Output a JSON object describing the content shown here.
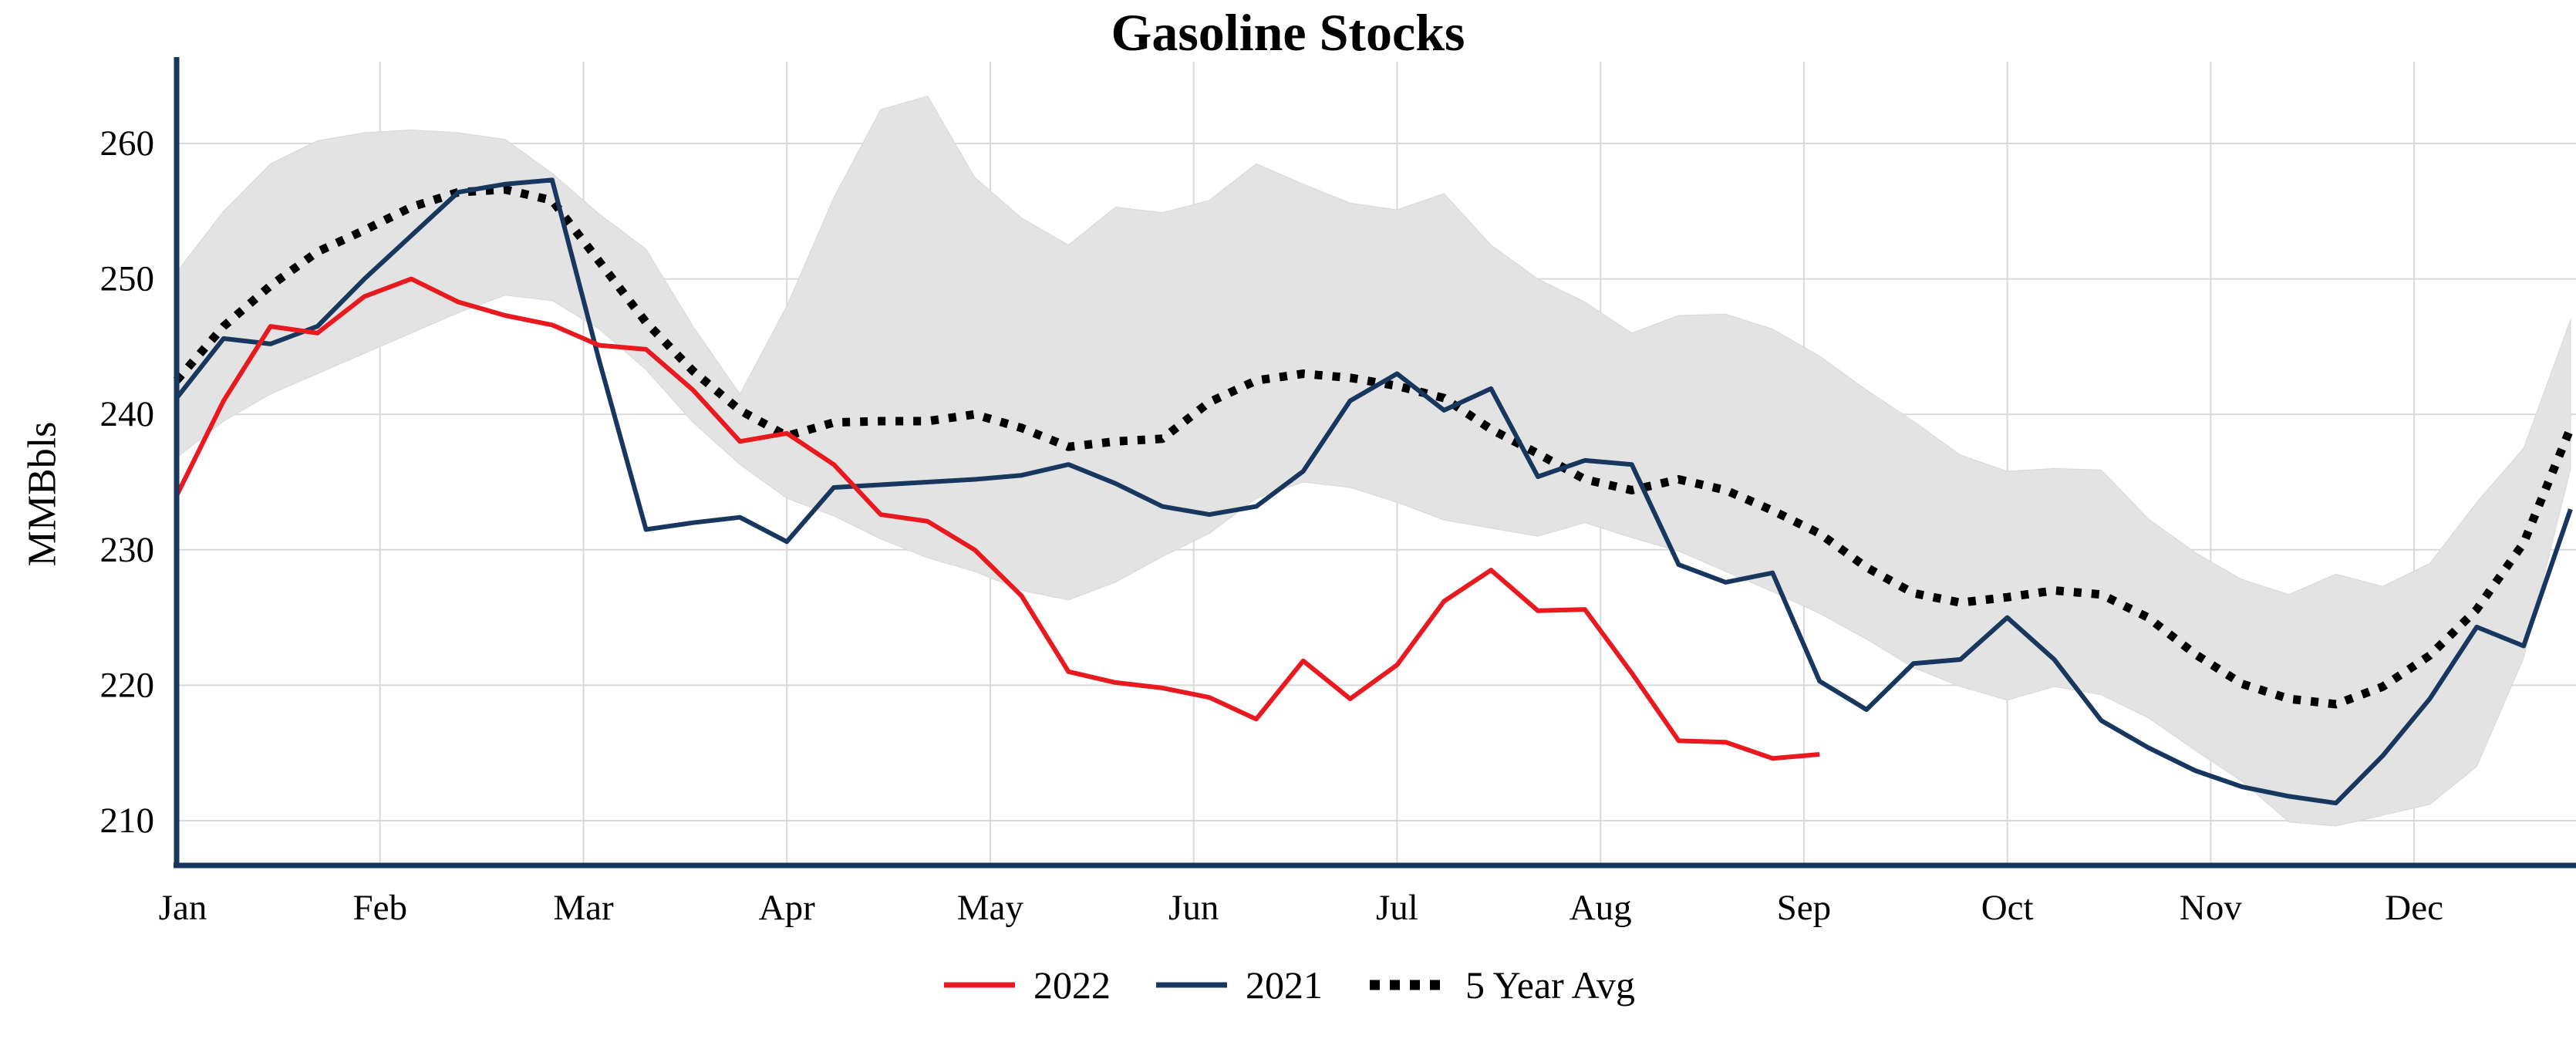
{
  "chart_data": {
    "type": "line",
    "title": "Gasoline Stocks",
    "ylabel": "MMBbls",
    "xlabel": "",
    "unit": "weekly values, weeks 0-51",
    "weeks": 52,
    "months": [
      "Jan",
      "Feb",
      "Mar",
      "Apr",
      "May",
      "Jun",
      "Jul",
      "Aug",
      "Sep",
      "Oct",
      "Nov",
      "Dec"
    ],
    "yticks": [
      210,
      220,
      230,
      240,
      250,
      260
    ],
    "ylim": [
      206.5,
      266
    ],
    "grid": true,
    "legend_position": "bottom",
    "series": [
      {
        "name": "2022",
        "color": "#e8191f",
        "style": "solid",
        "values": [
          234.0,
          241.0,
          246.5,
          246.0,
          248.7,
          250.0,
          248.3,
          247.3,
          246.6,
          245.1,
          244.8,
          241.8,
          238.0,
          238.6,
          236.3,
          232.6,
          232.1,
          230.0,
          226.6,
          221.0,
          220.2,
          219.8,
          219.1,
          217.5,
          221.8,
          219.0,
          221.5,
          226.2,
          228.5,
          225.5,
          225.6,
          220.9,
          215.9,
          215.8,
          214.6,
          214.9
        ]
      },
      {
        "name": "2021",
        "color": "#17375e",
        "style": "solid",
        "values": [
          241.2,
          245.6,
          245.2,
          246.5,
          250.0,
          253.2,
          256.4,
          257.0,
          257.3,
          244.0,
          231.5,
          232.0,
          232.4,
          230.6,
          234.6,
          234.8,
          235.0,
          235.2,
          235.5,
          236.3,
          234.9,
          233.2,
          232.6,
          233.2,
          235.8,
          241.0,
          243.0,
          240.3,
          241.9,
          235.4,
          236.6,
          236.3,
          228.9,
          227.6,
          228.3,
          220.3,
          218.2,
          221.6,
          221.9,
          225.0,
          221.9,
          217.4,
          215.4,
          213.7,
          212.5,
          211.8,
          211.3,
          214.8,
          219.0,
          224.3,
          222.9,
          233.0
        ]
      },
      {
        "name": "5 Year Avg",
        "color": "#000000",
        "style": "dotted",
        "values": [
          242.5,
          246.5,
          249.5,
          252.0,
          253.6,
          255.3,
          256.4,
          256.6,
          255.8,
          251.3,
          246.8,
          243.2,
          240.3,
          238.4,
          239.4,
          239.5,
          239.5,
          240.0,
          239.0,
          237.6,
          238.0,
          238.2,
          240.9,
          242.5,
          243.0,
          242.7,
          242.1,
          241.2,
          238.9,
          237.1,
          235.2,
          234.4,
          235.2,
          234.4,
          232.9,
          231.2,
          228.7,
          226.8,
          226.1,
          226.5,
          227.0,
          226.7,
          225.0,
          222.3,
          220.1,
          219.0,
          218.6,
          219.9,
          222.2,
          225.6,
          230.5,
          239.0
        ]
      }
    ],
    "range_band": {
      "color": "#e3e3e3",
      "upper": [
        250.5,
        255.0,
        258.5,
        260.2,
        260.8,
        261.0,
        260.8,
        260.3,
        257.8,
        254.8,
        252.2,
        246.5,
        241.5,
        248.0,
        256.0,
        262.5,
        263.5,
        257.5,
        254.5,
        252.5,
        255.3,
        254.9,
        255.8,
        258.5,
        257.0,
        255.6,
        255.1,
        256.3,
        252.5,
        250.0,
        248.3,
        246.0,
        247.3,
        247.4,
        246.3,
        244.3,
        241.8,
        239.5,
        237.0,
        235.8,
        236.0,
        235.9,
        232.3,
        229.8,
        227.8,
        226.7,
        228.2,
        227.3,
        229.0,
        233.5,
        237.5,
        247.0
      ],
      "lower": [
        236.8,
        239.5,
        241.5,
        243.0,
        244.5,
        246.0,
        247.5,
        248.8,
        248.4,
        246.3,
        243.3,
        239.4,
        236.3,
        233.8,
        232.5,
        230.8,
        229.4,
        228.4,
        227.0,
        226.3,
        227.6,
        229.5,
        231.2,
        233.8,
        235.0,
        234.6,
        233.5,
        232.2,
        231.6,
        231.0,
        232.0,
        230.9,
        229.9,
        228.4,
        226.9,
        225.3,
        223.4,
        221.3,
        219.9,
        218.9,
        219.9,
        219.3,
        217.6,
        215.2,
        212.9,
        209.9,
        209.6,
        210.4,
        211.2,
        214.0,
        222.0,
        236.0
      ]
    },
    "colors": {
      "axis": "#17375e",
      "grid": "#d9d9d9",
      "band": "#e3e3e3",
      "text": "#000000"
    }
  }
}
